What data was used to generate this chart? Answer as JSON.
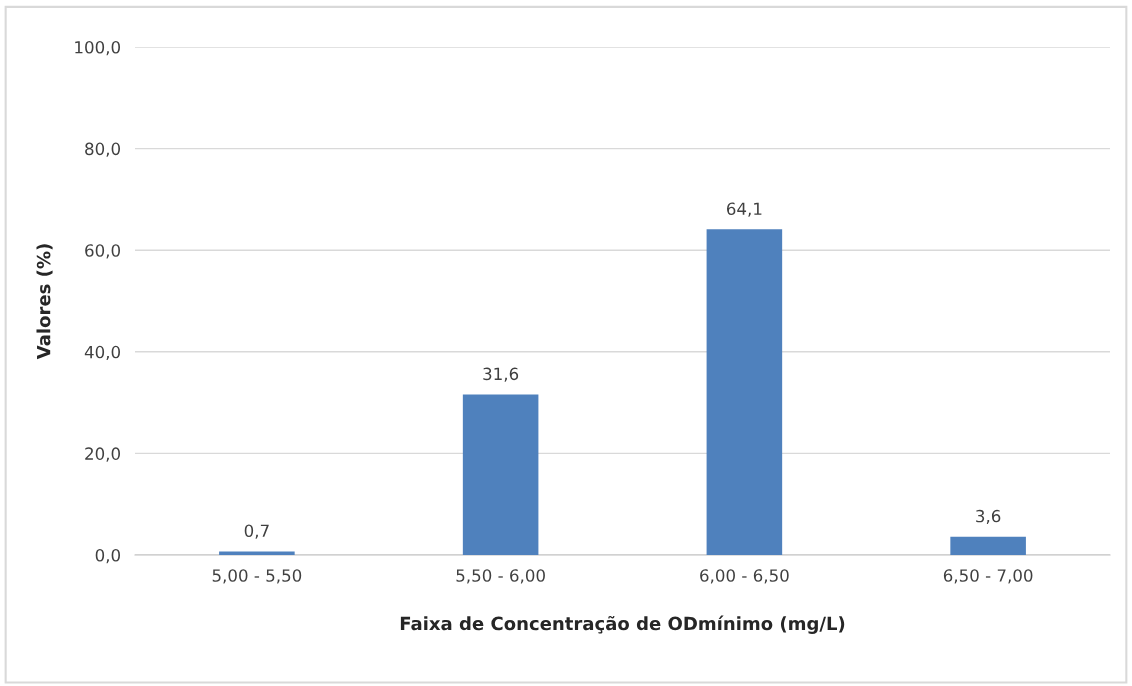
{
  "chart_data": {
    "type": "bar",
    "xlabel": "Faixa de Concentração de ODmínimo (mg/L)",
    "ylabel": "Valores (%)",
    "categories": [
      "5,00 - 5,50",
      "5,50 - 6,00",
      "6,00 - 6,50",
      "6,50 - 7,00"
    ],
    "values": [
      0.7,
      31.6,
      64.1,
      3.6
    ],
    "value_labels": [
      "0,7",
      "31,6",
      "64,1",
      "3,6"
    ],
    "color": "#4f81bd",
    "ylim": [
      0,
      100
    ],
    "yticks": [
      {
        "value": 0,
        "label": "0,0"
      },
      {
        "value": 20,
        "label": "20,0"
      },
      {
        "value": 40,
        "label": "40,0"
      },
      {
        "value": 60,
        "label": "60,0"
      },
      {
        "value": 80,
        "label": "80,0"
      },
      {
        "value": 100,
        "label": "100,0"
      }
    ],
    "grid": "y"
  }
}
